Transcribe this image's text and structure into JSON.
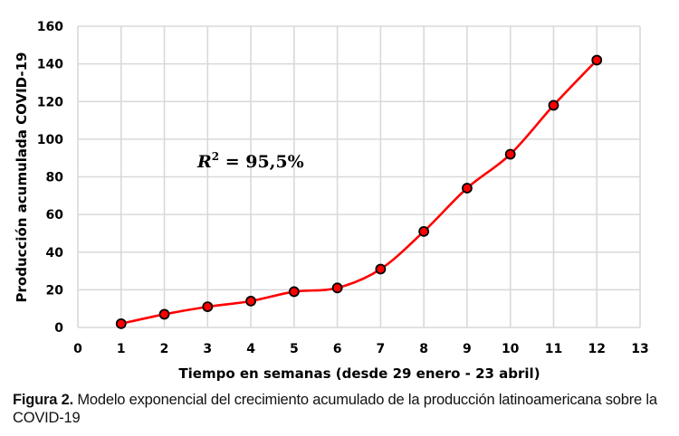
{
  "chart_data": {
    "type": "line",
    "title": "",
    "xlabel": "Tiempo en semanas (desde 29 enero - 23 abril)",
    "ylabel": "Producción acumulada COVID-19",
    "xlim": [
      0,
      13
    ],
    "ylim": [
      0,
      160
    ],
    "x_ticks": [
      0,
      1,
      2,
      3,
      4,
      5,
      6,
      7,
      8,
      9,
      10,
      11,
      12,
      13
    ],
    "y_ticks": [
      0,
      20,
      40,
      60,
      80,
      100,
      120,
      140,
      160
    ],
    "grid": true,
    "legend": null,
    "series": [
      {
        "name": "Producción acumulada",
        "color": "#ff0000",
        "marker_fill": "#ff0000",
        "marker_edge": "#000000",
        "smooth": true,
        "x": [
          1,
          2,
          3,
          4,
          5,
          6,
          7,
          8,
          9,
          10,
          11,
          12
        ],
        "values": [
          2,
          7,
          11,
          14,
          19,
          21,
          31,
          51,
          74,
          92,
          118,
          142
        ]
      }
    ],
    "annotations": [
      {
        "text": "R² = 95,5%",
        "base": "R",
        "sup": "2",
        "rest": " = 95,5%",
        "x": 3.1,
        "y": 87
      }
    ]
  },
  "caption": {
    "label": "Figura 2.",
    "text": " Modelo exponencial del crecimiento acumulado de la producción latinoamericana sobre la COVID-19"
  },
  "colors": {
    "grid": "#d9d9d9",
    "line": "#ff0000",
    "marker_edge": "#000000"
  }
}
